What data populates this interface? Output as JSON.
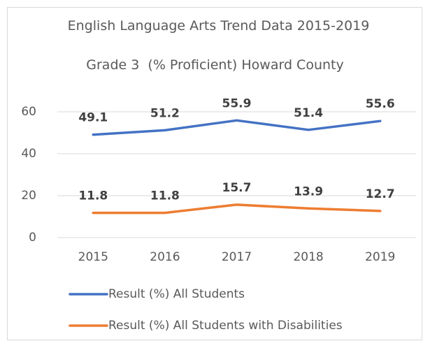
{
  "chart_data": {
    "type": "line",
    "title": "English Language Arts Trend Data 2015-2019",
    "subtitle": "Grade 3  (% Proficient) Howard County",
    "categories": [
      "2015",
      "2016",
      "2017",
      "2018",
      "2019"
    ],
    "series": [
      {
        "name": "Result (%) All Students",
        "color": "#4472c4",
        "values": [
          49.1,
          51.2,
          55.9,
          51.4,
          55.6
        ]
      },
      {
        "name": "Result (%) All Students with Disabilities",
        "color": "#ed7d31",
        "values": [
          11.8,
          11.8,
          15.7,
          13.9,
          12.7
        ]
      }
    ],
    "ylim": [
      0,
      60
    ],
    "yticks": [
      0,
      20,
      40,
      60
    ],
    "grid": true,
    "legend": "bottom"
  }
}
